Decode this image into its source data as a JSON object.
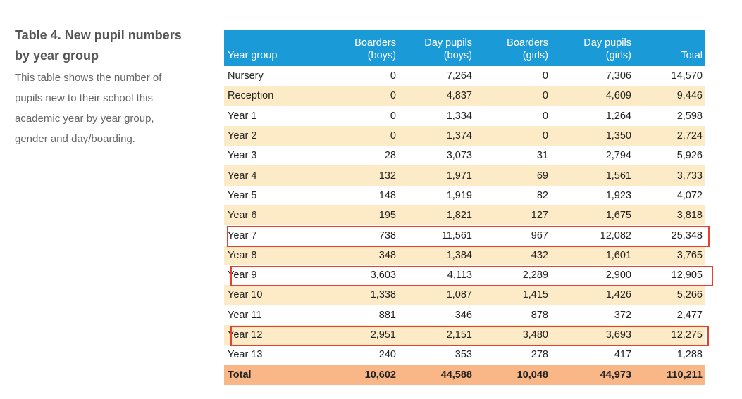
{
  "caption": {
    "title_line1": "Table 4. New pupil numbers",
    "title_line2": "by year group",
    "description_lines": [
      "This table shows the number of",
      "pupils new to their school this",
      "academic year by year group,",
      "gender and day/boarding."
    ]
  },
  "table": {
    "headers": [
      {
        "line1": "",
        "line2": "Year group"
      },
      {
        "line1": "Boarders",
        "line2": "(boys)"
      },
      {
        "line1": "Day pupils",
        "line2": "(boys)"
      },
      {
        "line1": "Boarders",
        "line2": "(girls)"
      },
      {
        "line1": "Day pupils",
        "line2": "(girls)"
      },
      {
        "line1": "",
        "line2": "Total"
      }
    ],
    "rows": [
      [
        "Nursery",
        "0",
        "7,264",
        "0",
        "7,306",
        "14,570"
      ],
      [
        "Reception",
        "0",
        "4,837",
        "0",
        "4,609",
        "9,446"
      ],
      [
        "Year 1",
        "0",
        "1,334",
        "0",
        "1,264",
        "2,598"
      ],
      [
        "Year 2",
        "0",
        "1,374",
        "0",
        "1,350",
        "2,724"
      ],
      [
        "Year 3",
        "28",
        "3,073",
        "31",
        "2,794",
        "5,926"
      ],
      [
        "Year 4",
        "132",
        "1,971",
        "69",
        "1,561",
        "3,733"
      ],
      [
        "Year 5",
        "148",
        "1,919",
        "82",
        "1,923",
        "4,072"
      ],
      [
        "Year 6",
        "195",
        "1,821",
        "127",
        "1,675",
        "3,818"
      ],
      [
        "Year 7",
        "738",
        "11,561",
        "967",
        "12,082",
        "25,348"
      ],
      [
        "Year 8",
        "348",
        "1,384",
        "432",
        "1,601",
        "3,765"
      ],
      [
        "Year 9",
        "3,603",
        "4,113",
        "2,289",
        "2,900",
        "12,905"
      ],
      [
        "Year 10",
        "1,338",
        "1,087",
        "1,415",
        "1,426",
        "5,266"
      ],
      [
        "Year 11",
        "881",
        "346",
        "878",
        "372",
        "2,477"
      ],
      [
        "Year 12",
        "2,951",
        "2,151",
        "3,480",
        "3,693",
        "12,275"
      ],
      [
        "Year 13",
        "240",
        "353",
        "278",
        "417",
        "1,288"
      ]
    ],
    "total_row": [
      "Total",
      "10,602",
      "44,588",
      "10,048",
      "44,973",
      "110,211"
    ],
    "highlighted_rows": [
      "Year 7",
      "Year 9",
      "Year 12"
    ]
  },
  "colors": {
    "header_bg": "#1a9bd7",
    "alt_row_bg": "#fdebc8",
    "total_row_bg": "#f9b686",
    "highlight_border": "#e8402a"
  }
}
